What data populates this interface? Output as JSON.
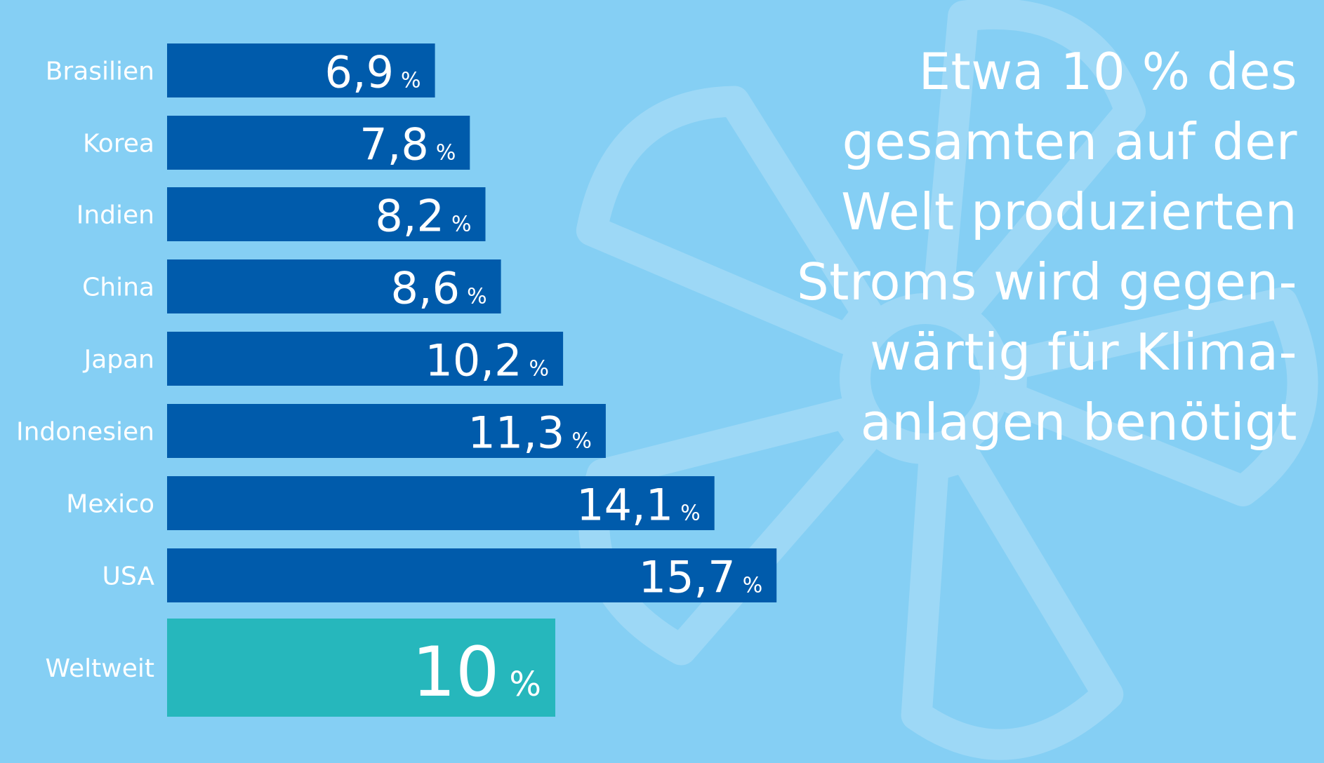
{
  "colors": {
    "background": "#85cff4",
    "bar": "#005bab",
    "bar_highlight": "#26b7bc",
    "text": "#ffffff",
    "watermark": "#9dd8f6"
  },
  "watermark_icon": "fan-icon",
  "headline_lines": [
    "Etwa 10 % des",
    "gesamten auf der",
    "Welt produzierten",
    "Stroms wird gegen-",
    "wärtig für Klima-",
    "anlagen benötigt"
  ],
  "chart_data": {
    "type": "bar",
    "orientation": "horizontal",
    "title": "",
    "xlabel": "",
    "ylabel": "",
    "unit": "%",
    "categories": [
      "Brasilien",
      "Korea",
      "Indien",
      "China",
      "Japan",
      "Indonesien",
      "Mexico",
      "USA",
      "Weltweit"
    ],
    "values": [
      6.9,
      7.8,
      8.2,
      8.6,
      10.2,
      11.3,
      14.1,
      15.7,
      10
    ],
    "value_labels": [
      "6,9",
      "7,8",
      "8,2",
      "8,6",
      "10,2",
      "11,3",
      "14,1",
      "15,7",
      "10"
    ],
    "highlight_category": "Weltweit",
    "grid": false,
    "legend": "none"
  }
}
